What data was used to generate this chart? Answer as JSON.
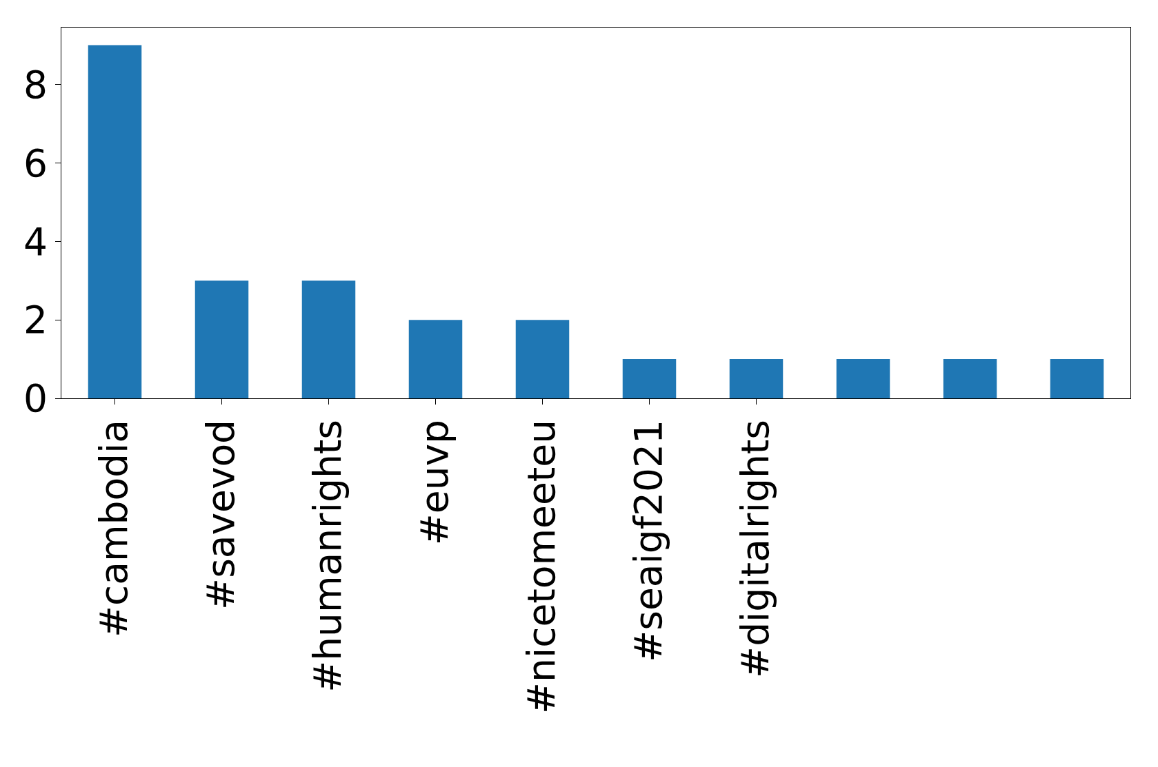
{
  "chart_data": {
    "type": "bar",
    "categories": [
      "#cambodia",
      "#savevod",
      "#humanrights",
      "#euvp",
      "#nicetomeeteu",
      "#seaigf2021",
      "#digitalrights",
      null,
      null,
      null
    ],
    "values": [
      9,
      3,
      3,
      2,
      2,
      1,
      1,
      1,
      1,
      1
    ],
    "color": "#1f77b4",
    "ylim": [
      0,
      9.45
    ],
    "yticks": [
      0,
      2,
      4,
      6,
      8
    ]
  }
}
